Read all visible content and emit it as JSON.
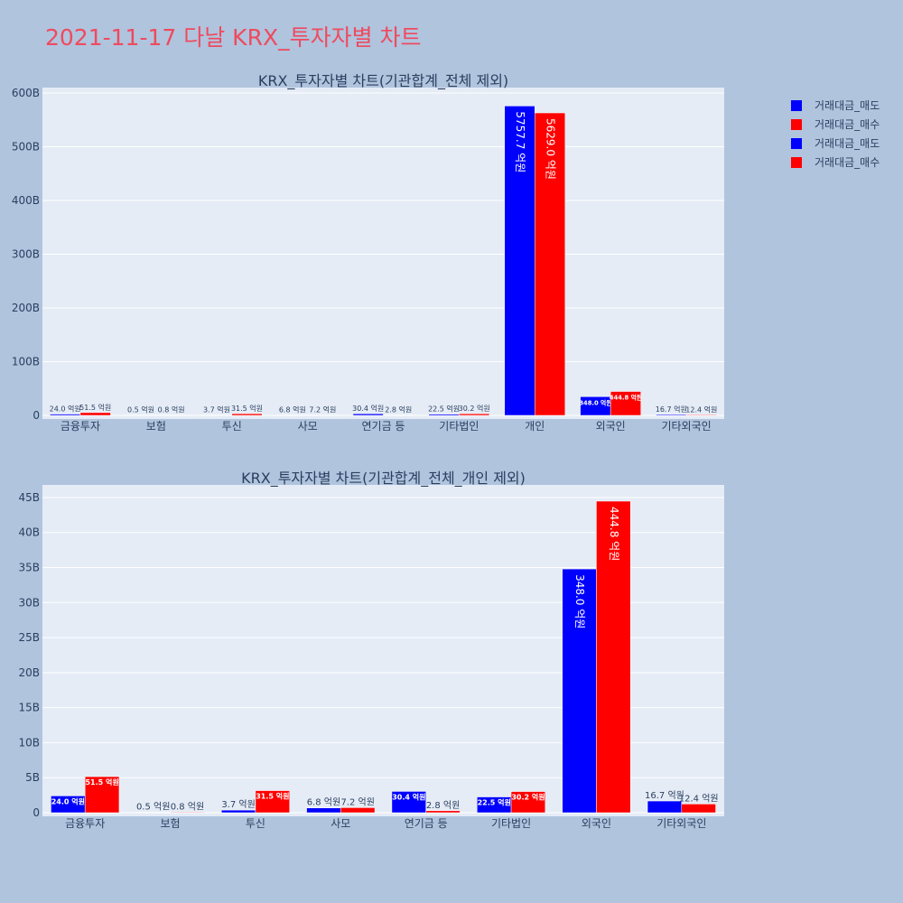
{
  "title": "2021-11-17 다날 KRX_투자자별 차트",
  "legend": [
    {
      "label": "거래대금_매도",
      "color": "#0000ff"
    },
    {
      "label": "거래대금_매수",
      "color": "#ff0000"
    },
    {
      "label": "거래대금_매도",
      "color": "#0000ff"
    },
    {
      "label": "거래대금_매수",
      "color": "#ff0000"
    }
  ],
  "chart_data": [
    {
      "type": "bar",
      "title": "KRX_투자자별 차트(기관합계_전체 제외)",
      "categories": [
        "금융투자",
        "보험",
        "투신",
        "사모",
        "연기금 등",
        "기타법인",
        "개인",
        "외국인",
        "기타외국인"
      ],
      "ylim": [
        0,
        610
      ],
      "yticks": [
        0,
        100,
        200,
        300,
        400,
        500,
        600
      ],
      "ytick_labels": [
        "0",
        "100B",
        "200B",
        "300B",
        "400B",
        "500B",
        "600B"
      ],
      "series": [
        {
          "name": "거래대금_매도",
          "color": "#0000ff",
          "values": [
            2.4,
            0.05,
            0.37,
            0.68,
            3.04,
            2.25,
            575.77,
            34.8,
            1.67
          ],
          "labels": [
            "24.0 억원",
            "0.5 억원",
            "3.7 억원",
            "6.8 억원",
            "30.4 억원",
            "22.5 억원",
            "5757.7 억원",
            "348.0 억원",
            "16.7 억원"
          ]
        },
        {
          "name": "거래대금_매수",
          "color": "#ff0000",
          "values": [
            5.15,
            0.08,
            3.15,
            0.72,
            0.28,
            3.02,
            562.9,
            44.48,
            1.24
          ],
          "labels": [
            "51.5 억원",
            "0.8 억원",
            "31.5 억원",
            "7.2 억원",
            "2.8 억원",
            "30.2 억원",
            "5629.0 억원",
            "444.8 억원",
            "12.4 억원"
          ]
        }
      ]
    },
    {
      "type": "bar",
      "title": "KRX_투자자별 차트(기관합계_전체_개인 제외)",
      "categories": [
        "금융투자",
        "보험",
        "투신",
        "사모",
        "연기금 등",
        "기타법인",
        "외국인",
        "기타외국인"
      ],
      "ylim": [
        0,
        46.8
      ],
      "yticks": [
        0,
        5,
        10,
        15,
        20,
        25,
        30,
        35,
        40,
        45
      ],
      "ytick_labels": [
        "0",
        "5B",
        "10B",
        "15B",
        "20B",
        "25B",
        "30B",
        "35B",
        "40B",
        "45B"
      ],
      "series": [
        {
          "name": "거래대금_매도",
          "color": "#0000ff",
          "values": [
            2.4,
            0.05,
            0.37,
            0.68,
            3.04,
            2.25,
            34.8,
            1.67
          ],
          "labels": [
            "24.0 억원",
            "0.5 억원",
            "3.7 억원",
            "6.8 억원",
            "30.4 억원",
            "22.5 억원",
            "348.0 억원",
            "16.7 억원"
          ]
        },
        {
          "name": "거래대금_매수",
          "color": "#ff0000",
          "values": [
            5.15,
            0.08,
            3.15,
            0.72,
            0.28,
            3.02,
            44.48,
            1.24
          ],
          "labels": [
            "51.5 억원",
            "0.8 억원",
            "31.5 억원",
            "7.2 억원",
            "2.8 억원",
            "30.2 억원",
            "444.8 억원",
            "12.4 억원"
          ]
        }
      ]
    }
  ]
}
